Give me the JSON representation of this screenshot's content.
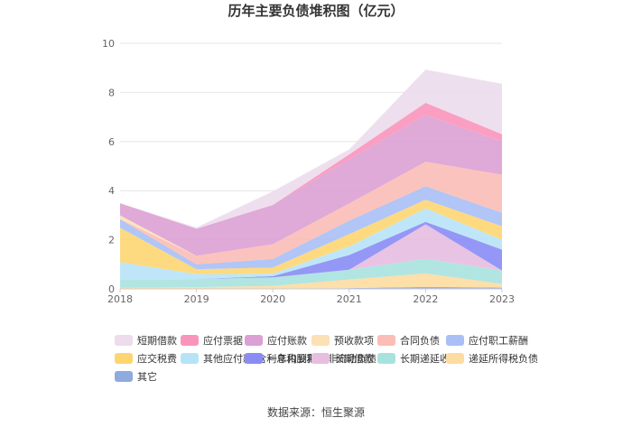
{
  "chart_data": {
    "type": "area",
    "stacked": true,
    "title": "历年主要负债堆积图（亿元）",
    "xlabel": "",
    "ylabel": "",
    "x": [
      "2018",
      "2019",
      "2020",
      "2021",
      "2022",
      "2023"
    ],
    "yticks": [
      "0",
      "2",
      "4",
      "6",
      "8",
      "10"
    ],
    "ylim": [
      0,
      10
    ],
    "grid": true,
    "legend_position": "bottom",
    "series": [
      {
        "name": "其它",
        "color": "#8faadc",
        "values": [
          0.02,
          0.02,
          0.02,
          0.03,
          0.08,
          0.05
        ]
      },
      {
        "name": "递延所得税负债",
        "color": "#fcdca0",
        "values": [
          0.02,
          0.05,
          0.1,
          0.35,
          0.55,
          0.15
        ]
      },
      {
        "name": "长期递延收益",
        "color": "#a8e2de",
        "values": [
          0.35,
          0.33,
          0.35,
          0.4,
          0.6,
          0.55
        ]
      },
      {
        "name": "长期借款",
        "color": "#e7bde0",
        "values": [
          0.0,
          0.0,
          0.0,
          0.0,
          1.4,
          0.0
        ]
      },
      {
        "name": "一年内到期的非流动负债",
        "color": "#8a8cf5",
        "values": [
          0.0,
          0.0,
          0.05,
          0.6,
          0.1,
          0.85
        ]
      },
      {
        "name": "其他应付款(含利息和股利)",
        "color": "#b7e3f7",
        "values": [
          0.7,
          0.2,
          0.1,
          0.35,
          0.55,
          0.4
        ]
      },
      {
        "name": "应交税费",
        "color": "#fdd672",
        "values": [
          1.4,
          0.2,
          0.25,
          0.5,
          0.35,
          0.55
        ]
      },
      {
        "name": "应付职工薪酬",
        "color": "#a9bff5",
        "values": [
          0.35,
          0.2,
          0.35,
          0.55,
          0.55,
          0.55
        ]
      },
      {
        "name": "合同负债",
        "color": "#fbbdb6",
        "values": [
          0.0,
          0.35,
          0.6,
          0.7,
          1.0,
          1.55
        ]
      },
      {
        "name": "预收款项",
        "color": "#fde0b4",
        "values": [
          0.15,
          0.0,
          0.0,
          0.0,
          0.0,
          0.0
        ]
      },
      {
        "name": "应付账款",
        "color": "#dba0d4",
        "values": [
          0.5,
          1.1,
          1.6,
          1.8,
          1.9,
          1.35
        ]
      },
      {
        "name": "应付票据",
        "color": "#f995bb",
        "values": [
          0.0,
          0.0,
          0.0,
          0.2,
          0.5,
          0.3
        ]
      },
      {
        "name": "短期借款",
        "color": "#ecdcec",
        "values": [
          0.0,
          0.05,
          0.55,
          0.2,
          1.35,
          2.05
        ]
      }
    ],
    "legend_order": [
      "短期借款",
      "应付票据",
      "应付账款",
      "预收款项",
      "合同负债",
      "应付职工薪酬",
      "应交税费",
      "其他应付款(含利息和股利)",
      "一年内到期的非流动负债",
      "长期借款",
      "长期递延收益",
      "递延所得税负债",
      "其它"
    ]
  },
  "source": "数据来源：恒生聚源"
}
